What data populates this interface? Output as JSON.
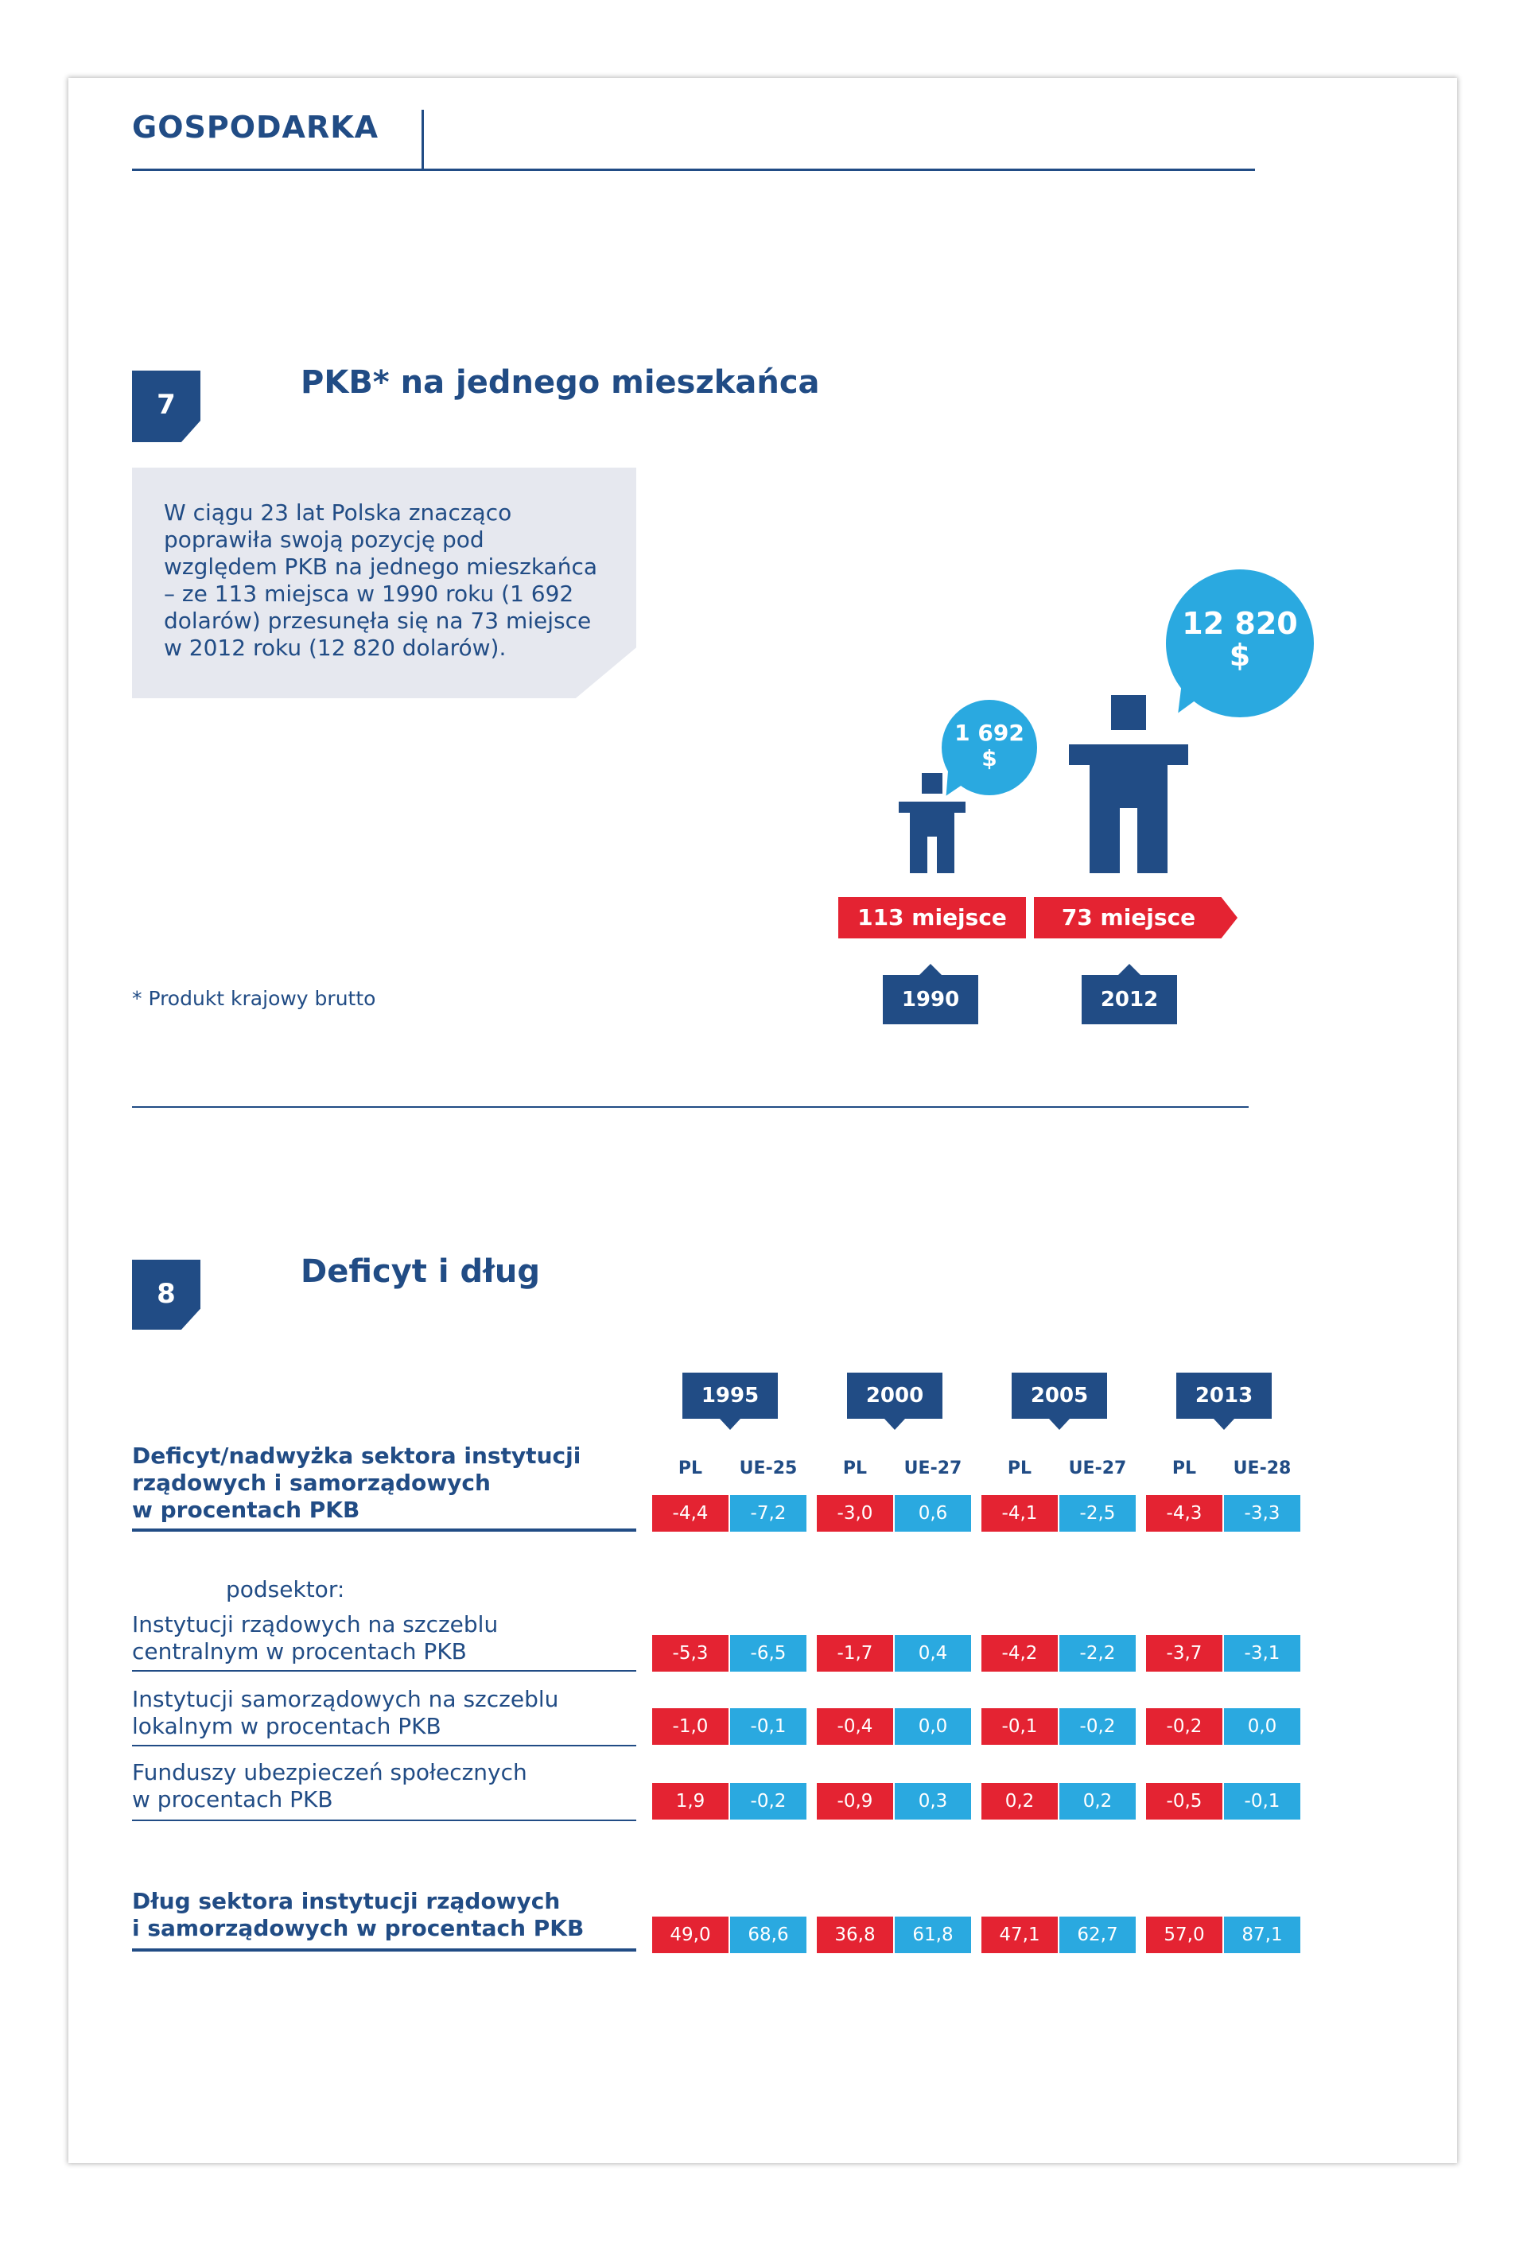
{
  "header": {
    "section": "GOSPODARKA"
  },
  "section7": {
    "number": "7",
    "title": "PKB* na jednego mieszkańca",
    "text": "W ciągu 23 lat Polska znacząco poprawiła swoją pozycję pod względem PKB na jednego mieszkańca – ze 113 miejsca w 1990 roku (1 692 dolarów) przesunęła się na 73 miejsce w 2012 roku (12 820 dolarów).",
    "small_bubble": {
      "amount": "1 692",
      "currency": "$"
    },
    "big_bubble": {
      "amount": "12 820",
      "currency": "$"
    },
    "rank_1990": "113 miejsce",
    "rank_2012": "73 miejsce",
    "year_1990": "1990",
    "year_2012": "2012",
    "footnote": "* Produkt krajowy brutto"
  },
  "section8": {
    "number": "8",
    "title": "Deficyt i dług",
    "years": [
      "1995",
      "2000",
      "2005",
      "2013"
    ],
    "columns": [
      "PL",
      "UE-25",
      "PL",
      "UE-27",
      "PL",
      "UE-27",
      "PL",
      "UE-28"
    ],
    "subsector_label": "podsektor:",
    "rows": [
      {
        "label_lines": [
          "Deficyt/nadwyżka sektora instytucji",
          "rządowych i samorządowych",
          "w procentach PKB"
        ],
        "values": [
          "-4,4",
          "-7,2",
          "-3,0",
          "0,6",
          "-4,1",
          "-2,5",
          "-4,3",
          "-3,3"
        ]
      },
      {
        "label_lines": [
          "Instytucji rządowych na szczeblu",
          "centralnym w procentach PKB"
        ],
        "values": [
          "-5,3",
          "-6,5",
          "-1,7",
          "0,4",
          "-4,2",
          "-2,2",
          "-3,7",
          "-3,1"
        ]
      },
      {
        "label_lines": [
          "Instytucji samorządowych na szczeblu",
          "lokalnym w procentach PKB"
        ],
        "values": [
          "-1,0",
          "-0,1",
          "-0,4",
          "0,0",
          "-0,1",
          "-0,2",
          "-0,2",
          "0,0"
        ]
      },
      {
        "label_lines": [
          "Funduszy ubezpieczeń społecznych",
          "w procentach PKB"
        ],
        "values": [
          "1,9",
          "-0,2",
          "-0,9",
          "0,3",
          "0,2",
          "0,2",
          "-0,5",
          "-0,1"
        ]
      },
      {
        "label_lines": [
          "Dług sektora instytucji rządowych",
          "i samorządowych w procentach PKB"
        ],
        "values": [
          "49,0",
          "68,6",
          "36,8",
          "61,8",
          "47,1",
          "62,7",
          "57,0",
          "87,1"
        ]
      }
    ]
  },
  "colors": {
    "navy": "#214c85",
    "red": "#e42332",
    "blue": "#2aa9e0",
    "box": "#e6e8ef"
  }
}
